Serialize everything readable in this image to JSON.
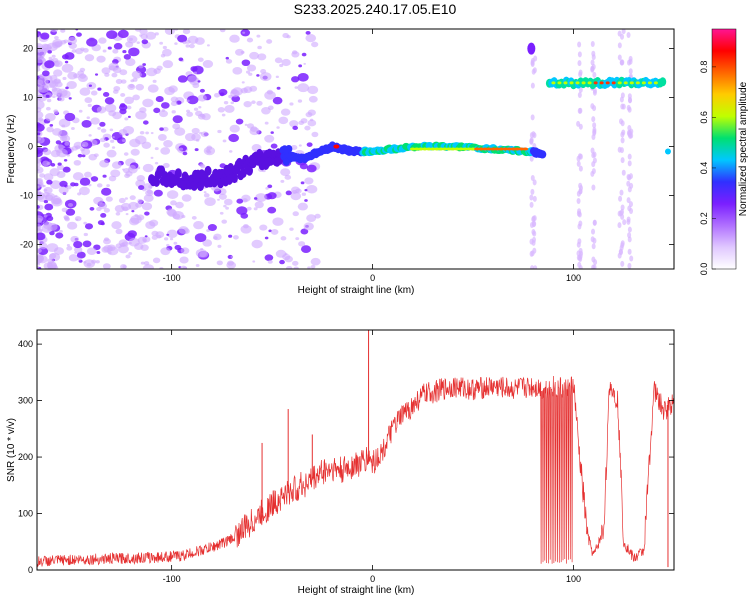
{
  "title": "S233.2025.240.17.05.E10",
  "chart_data": [
    {
      "type": "heatmap",
      "xlabel": "Height of straight line (km)",
      "ylabel": "Frequency (Hz)",
      "xlim": [
        -167,
        150
      ],
      "ylim": [
        -25,
        24
      ],
      "xticks": [
        -100,
        0,
        100
      ],
      "xtick_labels": [
        "-100",
        "0",
        "100"
      ],
      "yticks": [
        -20,
        -10,
        0,
        10,
        20
      ],
      "ytick_labels": [
        "-20",
        "-10",
        "0",
        "10",
        "20"
      ],
      "colorbar": {
        "label": "Normalized spectral amplitude",
        "range": [
          0,
          0.95
        ],
        "ticks": [
          0.0,
          0.2,
          0.4,
          0.6,
          0.8
        ],
        "tick_labels": [
          "0.0",
          "0.2",
          "0.4",
          "0.6",
          "0.8"
        ],
        "colors": [
          "#ffffff",
          "#e0c8ff",
          "#b070ff",
          "#7a1fff",
          "#3030ff",
          "#00c8ff",
          "#00e070",
          "#c0ff00",
          "#ffcc00",
          "#ff6600",
          "#ff0000",
          "#ff1493"
        ]
      },
      "ridge": [
        {
          "x": -110,
          "y": -6
        },
        {
          "x": -90,
          "y": -7
        },
        {
          "x": -75,
          "y": -6
        },
        {
          "x": -60,
          "y": -3.5
        },
        {
          "x": -45,
          "y": -1.5
        },
        {
          "x": -35,
          "y": -2.5
        },
        {
          "x": -20,
          "y": 0
        },
        {
          "x": -10,
          "y": -1
        },
        {
          "x": 0,
          "y": -1
        },
        {
          "x": 20,
          "y": 0
        },
        {
          "x": 40,
          "y": 0
        },
        {
          "x": 60,
          "y": -0.5
        },
        {
          "x": 78,
          "y": -1
        },
        {
          "x": 85,
          "y": -1.5
        }
      ],
      "secondary_band": {
        "x_start": 88,
        "x_end": 145,
        "y": 13
      }
    },
    {
      "type": "line",
      "xlabel": "Height of straight line (km)",
      "ylabel": "SNR (10 * v/v)",
      "xlim": [
        -167,
        150
      ],
      "ylim": [
        0,
        425
      ],
      "xticks": [
        -100,
        0,
        100
      ],
      "xtick_labels": [
        "-100",
        "0",
        "100"
      ],
      "yticks": [
        0,
        100,
        200,
        300,
        400
      ],
      "ytick_labels": [
        "0",
        "100",
        "200",
        "300",
        "400"
      ],
      "color": "#e53030",
      "series": [
        {
          "name": "SNR",
          "x": [
            -167,
            -150,
            -130,
            -110,
            -95,
            -80,
            -70,
            -60,
            -52,
            -45,
            -40,
            -35,
            -30,
            -25,
            -20,
            -15,
            -10,
            -5,
            -2,
            0,
            5,
            10,
            15,
            20,
            25,
            30,
            40,
            50,
            60,
            70,
            80,
            85,
            90,
            95,
            100,
            103,
            107,
            110,
            115,
            118,
            122,
            125,
            130,
            135,
            140,
            145,
            150
          ],
          "values": [
            15,
            18,
            20,
            22,
            25,
            40,
            55,
            85,
            110,
            130,
            140,
            150,
            160,
            175,
            180,
            175,
            185,
            190,
            200,
            190,
            210,
            250,
            275,
            290,
            310,
            315,
            325,
            320,
            325,
            320,
            325,
            320,
            325,
            320,
            330,
            200,
            60,
            25,
            70,
            330,
            300,
            50,
            20,
            35,
            320,
            280,
            300
          ]
        }
      ],
      "spikes": [
        {
          "x": -55,
          "value": 225
        },
        {
          "x": -42,
          "value": 285
        },
        {
          "x": -30,
          "value": 240
        },
        {
          "x": -2,
          "value": 425
        }
      ]
    }
  ]
}
